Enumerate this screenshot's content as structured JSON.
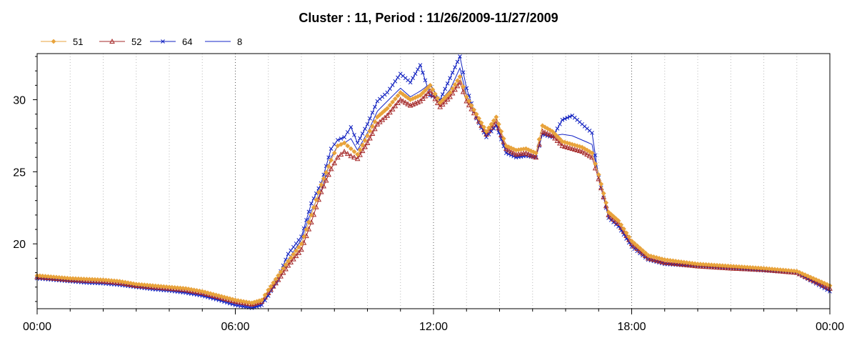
{
  "chart_data": {
    "type": "line",
    "title": "Cluster : 11, Period : 11/26/2009-11/27/2009",
    "xlabel": "",
    "ylabel": "",
    "x_tick_labels": [
      "00:00",
      "06:00",
      "12:00",
      "18:00",
      "00:00"
    ],
    "y_tick_labels": [
      "20",
      "25",
      "30"
    ],
    "y_ticks": [
      20,
      25,
      30
    ],
    "ylim": [
      15.5,
      33.2
    ],
    "xlim_hours": [
      0,
      24
    ],
    "grid": "dotted",
    "legend_position": "top-left",
    "x_hours": [
      0,
      0.5,
      1,
      1.5,
      2,
      2.5,
      3,
      3.5,
      4,
      4.5,
      5,
      5.5,
      6,
      6.5,
      6.8,
      7,
      7.3,
      7.6,
      8,
      8.3,
      8.6,
      8.9,
      9.1,
      9.3,
      9.5,
      9.7,
      10,
      10.3,
      10.6,
      11,
      11.3,
      11.6,
      11.9,
      12.2,
      12.5,
      12.8,
      13,
      13.3,
      13.6,
      13.9,
      14.2,
      14.5,
      14.8,
      15.1,
      15.3,
      15.6,
      15.9,
      16.2,
      16.5,
      16.8,
      17,
      17.3,
      17.6,
      18,
      18.5,
      19,
      20,
      21,
      22,
      23,
      24
    ],
    "series": [
      {
        "name": "51",
        "color": "#E8A33C",
        "marker": "diamond",
        "values": [
          17.8,
          17.7,
          17.6,
          17.55,
          17.5,
          17.4,
          17.2,
          17.1,
          17.0,
          16.9,
          16.7,
          16.4,
          16.1,
          15.9,
          16.1,
          16.8,
          17.8,
          18.8,
          20.0,
          22.0,
          24.1,
          25.8,
          26.8,
          27.0,
          26.6,
          26.2,
          27.5,
          28.8,
          29.4,
          30.5,
          30.0,
          30.3,
          31.0,
          29.8,
          30.5,
          31.6,
          30.2,
          29.0,
          27.8,
          28.8,
          26.8,
          26.5,
          26.6,
          26.3,
          28.2,
          27.8,
          27.1,
          26.9,
          26.7,
          26.3,
          24.8,
          22.2,
          21.6,
          20.2,
          19.2,
          18.9,
          18.6,
          18.45,
          18.3,
          18.1,
          17.1
        ]
      },
      {
        "name": "52",
        "color": "#A52A2A",
        "marker": "triangle",
        "values": [
          17.7,
          17.6,
          17.5,
          17.45,
          17.4,
          17.3,
          17.1,
          17.0,
          16.9,
          16.8,
          16.6,
          16.3,
          16.0,
          15.8,
          16.0,
          16.6,
          17.5,
          18.5,
          19.6,
          21.5,
          23.6,
          25.2,
          26.0,
          26.4,
          26.1,
          25.9,
          27.0,
          28.3,
          28.9,
          30.0,
          29.6,
          29.9,
          30.6,
          29.5,
          30.2,
          31.2,
          29.9,
          28.8,
          27.6,
          28.5,
          26.6,
          26.2,
          26.3,
          26.0,
          27.8,
          27.5,
          26.8,
          26.6,
          26.4,
          26.0,
          24.5,
          22.0,
          21.4,
          20.0,
          19.0,
          18.7,
          18.45,
          18.3,
          18.2,
          18.0,
          16.9
        ]
      },
      {
        "name": "64",
        "color": "#1020C0",
        "marker": "x",
        "values": [
          17.6,
          17.5,
          17.4,
          17.3,
          17.25,
          17.15,
          17.0,
          16.85,
          16.75,
          16.6,
          16.4,
          16.1,
          15.75,
          15.55,
          15.75,
          16.4,
          17.7,
          19.3,
          20.5,
          22.8,
          24.2,
          26.6,
          27.2,
          27.4,
          28.1,
          27.0,
          28.3,
          29.9,
          30.5,
          31.8,
          31.2,
          32.4,
          30.3,
          30.0,
          31.5,
          33.0,
          30.8,
          28.7,
          27.4,
          28.2,
          26.3,
          26.0,
          26.1,
          26.0,
          27.6,
          27.4,
          28.6,
          28.9,
          28.3,
          27.7,
          24.6,
          21.8,
          21.2,
          19.8,
          18.9,
          18.6,
          18.45,
          18.3,
          18.15,
          18.0,
          16.7
        ]
      },
      {
        "name": "8",
        "color": "#1424C8",
        "marker": "none",
        "values": [
          17.6,
          17.55,
          17.45,
          17.35,
          17.3,
          17.2,
          17.05,
          16.9,
          16.8,
          16.7,
          16.5,
          16.2,
          15.85,
          15.65,
          15.85,
          16.5,
          17.4,
          18.9,
          20.3,
          22.3,
          23.6,
          26.0,
          26.8,
          27.0,
          27.3,
          26.5,
          27.7,
          29.2,
          29.9,
          30.8,
          30.2,
          30.6,
          31.1,
          29.9,
          30.7,
          32.2,
          30.3,
          28.9,
          27.5,
          28.3,
          26.5,
          26.1,
          26.3,
          26.1,
          27.7,
          27.5,
          27.6,
          27.5,
          27.2,
          26.9,
          24.6,
          21.9,
          21.3,
          19.9,
          19.0,
          18.65,
          18.45,
          18.3,
          18.2,
          18.0,
          16.8
        ]
      }
    ]
  }
}
